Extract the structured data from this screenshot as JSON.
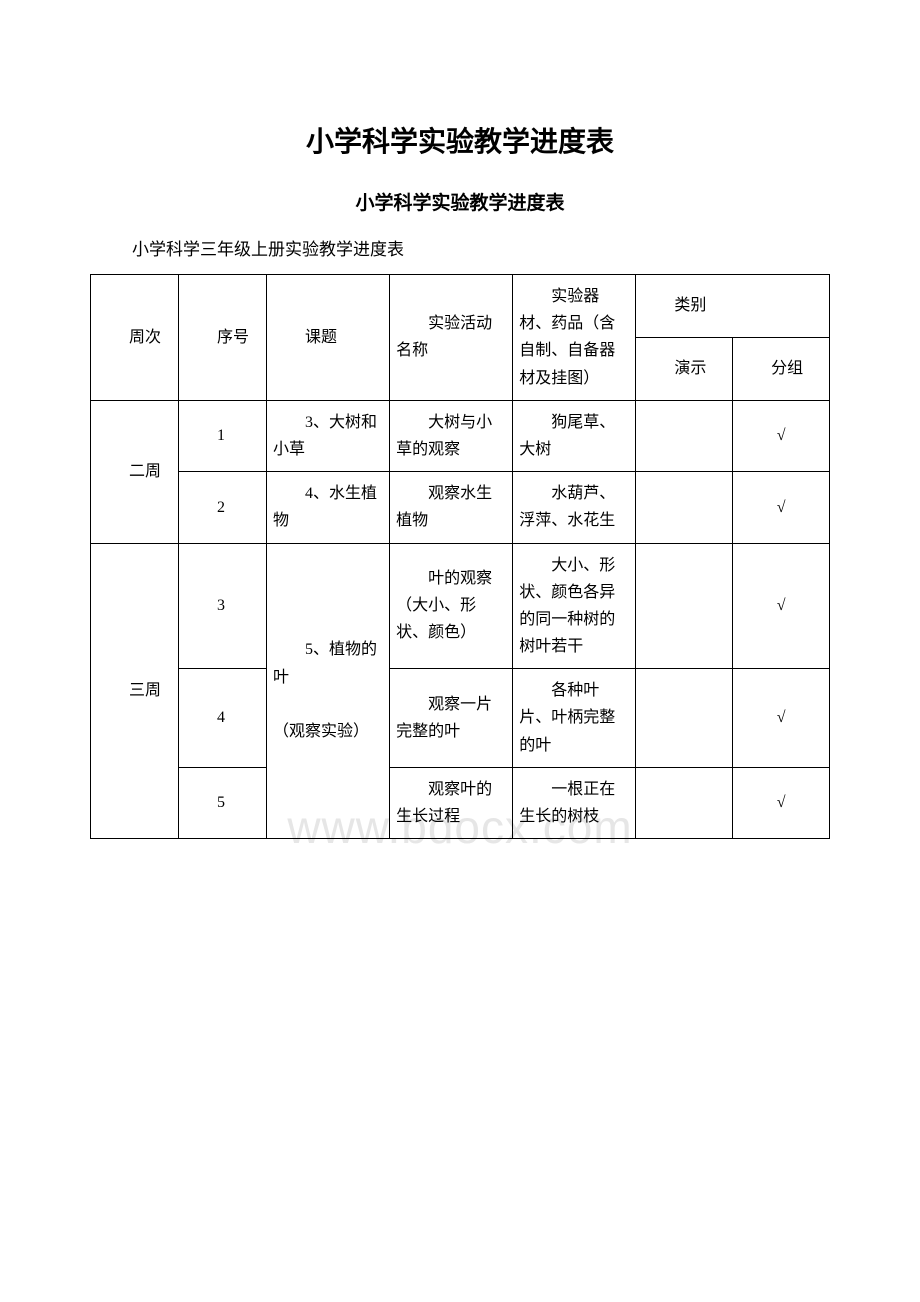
{
  "title_main": "小学科学实验教学进度表",
  "title_sub": "小学科学实验教学进度表",
  "intro": "小学科学三年级上册实验教学进度表",
  "watermark": "www.bdocx.com",
  "header": {
    "week": "周次",
    "seq": "序号",
    "topic": "课题",
    "activity": "实验活动名称",
    "materials": "实验器材、药品（含自制、自备器材及挂图）",
    "category": "类别",
    "demo": "演示",
    "group": "分组"
  },
  "checkmark": "√",
  "rows": [
    {
      "week": "二周",
      "seq": "1",
      "topic": "3、大树和小草",
      "activity": "大树与小草的观察",
      "materials": "狗尾草、大树",
      "demo": "",
      "group": "√"
    },
    {
      "week": "",
      "seq": "2",
      "topic": "4、水生植物",
      "activity": "观察水生植物",
      "materials": "水葫芦、浮萍、水花生",
      "demo": "",
      "group": "√"
    },
    {
      "week": "三周",
      "seq": "3",
      "topic": "5、植物的叶",
      "topic_note": "（观察实验）",
      "activity": "叶的观察（大小、形状、颜色）",
      "materials": "大小、形状、颜色各异的同一种树的树叶若干",
      "demo": "",
      "group": "√"
    },
    {
      "week": "",
      "seq": "4",
      "topic": "",
      "activity": "观察一片完整的叶",
      "materials": "各种叶片、叶柄完整的叶",
      "demo": "",
      "group": "√"
    },
    {
      "week": "",
      "seq": "5",
      "topic": "",
      "activity": "观察叶的生长过程",
      "materials": "一根正在生长的树枝",
      "demo": "",
      "group": "√"
    }
  ]
}
